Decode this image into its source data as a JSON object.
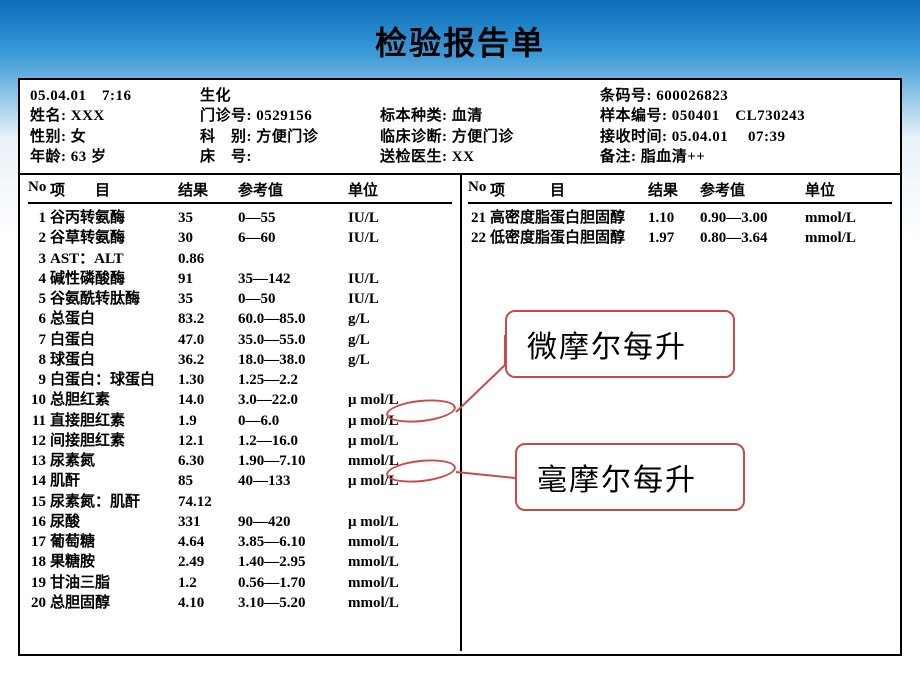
{
  "title": "检验报告单",
  "meta": {
    "datetime": "05.04.01　7:16",
    "dept": "生化",
    "barcode_label": "条码号:",
    "barcode": "600026823",
    "name_label": "姓名:",
    "name": "XXX",
    "outpatient_label": "门诊号:",
    "outpatient": "0529156",
    "specimen_label": "标本种类:",
    "specimen": "血清",
    "sample_no_label": "样本编号:",
    "sample_no": "050401　CL730243",
    "sex_label": "性别:",
    "sex": "女",
    "division_label": "科　别:",
    "division": "方便门诊",
    "diag_label": "临床诊断:",
    "diag": "方便门诊",
    "recv_label": "接收时间:",
    "recv": "05.04.01　 07:39",
    "age_label": "年龄:",
    "age": "63 岁",
    "bed_label": "床　号:",
    "bed": "",
    "doctor_label": "送检医生:",
    "doctor": "XX",
    "remark_label": "备注:",
    "remark": "脂血清++"
  },
  "headers": {
    "no": "No",
    "item_l": "项",
    "item_r": "目",
    "result": "结果",
    "ref": "参考值",
    "unit": "单位"
  },
  "left_rows": [
    {
      "no": "1",
      "name": "谷丙转氨酶",
      "res": "35",
      "ref": "0—55",
      "unit": "IU/L"
    },
    {
      "no": "2",
      "name": "谷草转氨酶",
      "res": "30",
      "ref": "6—60",
      "unit": "IU/L"
    },
    {
      "no": "3",
      "name": "AST：ALT",
      "res": "0.86",
      "ref": "",
      "unit": ""
    },
    {
      "no": "4",
      "name": "碱性磷酸酶",
      "res": "91",
      "ref": "35—142",
      "unit": "IU/L"
    },
    {
      "no": "5",
      "name": "谷氨酰转肽酶",
      "res": "35",
      "ref": "0—50",
      "unit": "IU/L"
    },
    {
      "no": "6",
      "name": "总蛋白",
      "res": "83.2",
      "ref": "60.0—85.0",
      "unit": "g/L"
    },
    {
      "no": "7",
      "name": "白蛋白",
      "res": "47.0",
      "ref": "35.0—55.0",
      "unit": "g/L"
    },
    {
      "no": "8",
      "name": "球蛋白",
      "res": "36.2",
      "ref": "18.0—38.0",
      "unit": "g/L"
    },
    {
      "no": "9",
      "name": "白蛋白：球蛋白",
      "res": "1.30",
      "ref": "1.25—2.2",
      "unit": ""
    },
    {
      "no": "10",
      "name": "总胆红素",
      "res": "14.0",
      "ref": "3.0—22.0",
      "unit": "μ mol/L"
    },
    {
      "no": "11",
      "name": "直接胆红素",
      "res": "1.9",
      "ref": "0—6.0",
      "unit": "μ mol/L"
    },
    {
      "no": "12",
      "name": "间接胆红素",
      "res": "12.1",
      "ref": "1.2—16.0",
      "unit": "μ mol/L"
    },
    {
      "no": "13",
      "name": "尿素氮",
      "res": "6.30",
      "ref": "1.90—7.10",
      "unit": "mmol/L"
    },
    {
      "no": "14",
      "name": "肌酐",
      "res": "85",
      "ref": "40—133",
      "unit": "μ mol/L"
    },
    {
      "no": "15",
      "name": "尿素氮：肌酐",
      "res": "74.12",
      "ref": "",
      "unit": ""
    },
    {
      "no": "16",
      "name": "尿酸",
      "res": "331",
      "ref": "90—420",
      "unit": "μ mol/L"
    },
    {
      "no": "17",
      "name": "葡萄糖",
      "res": "4.64",
      "ref": "3.85—6.10",
      "unit": "mmol/L"
    },
    {
      "no": "18",
      "name": "果糖胺",
      "res": "2.49",
      "ref": "1.40—2.95",
      "unit": "mmol/L"
    },
    {
      "no": "19",
      "name": "甘油三脂",
      "res": "1.2",
      "ref": "0.56—1.70",
      "unit": "mmol/L"
    },
    {
      "no": "20",
      "name": "总胆固醇",
      "res": "4.10",
      "ref": "3.10—5.20",
      "unit": "mmol/L"
    }
  ],
  "right_rows": [
    {
      "no": "21",
      "name": "高密度脂蛋白胆固醇",
      "res": "1.10",
      "ref": "0.90—3.00",
      "unit": "mmol/L"
    },
    {
      "no": "22",
      "name": "低密度脂蛋白胆固醇",
      "res": "1.97",
      "ref": "0.80—3.64",
      "unit": "mmol/L"
    }
  ],
  "callouts": {
    "c1": "微摩尔每升",
    "c2": "毫摩尔每升"
  },
  "styling": {
    "page_bg_gradient": [
      "#0a6db8",
      "#3d9bd8",
      "#e8f2f8",
      "#ffffff"
    ],
    "border_color": "#000000",
    "callout_border": "#c84a4a",
    "font_family": "SimSun",
    "title_fontsize": 32,
    "body_fontsize": 15,
    "callout_fontsize": 30
  }
}
